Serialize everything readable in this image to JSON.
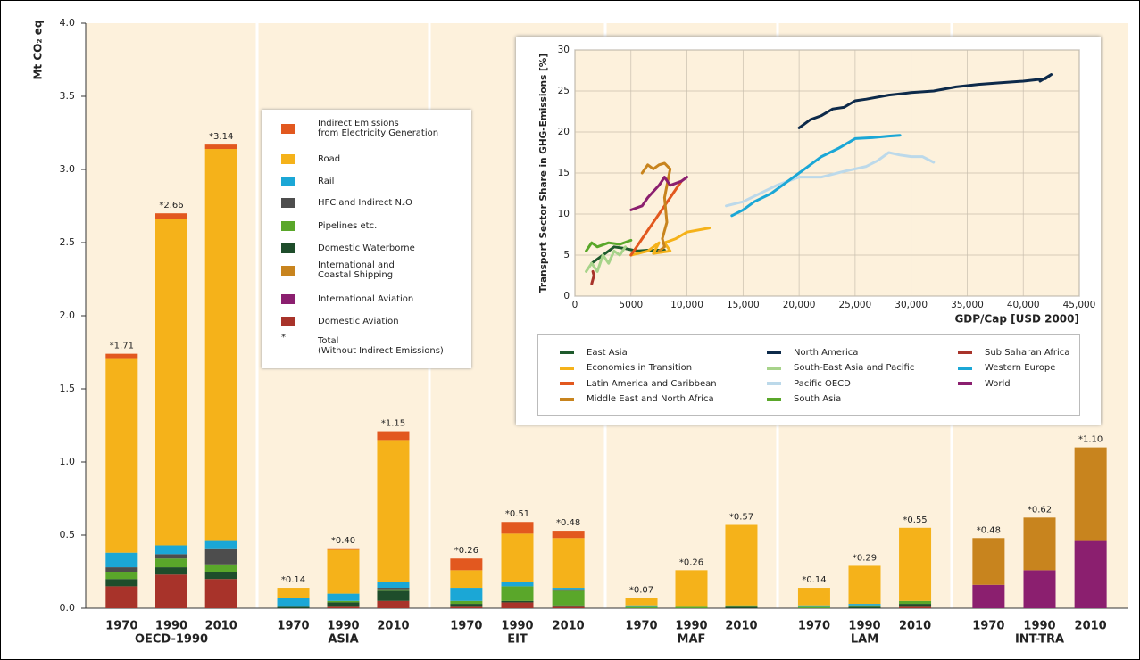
{
  "chart_data": [
    {
      "type": "stacked_bar",
      "ylabel": "Mt CO₂ eq",
      "ylim": [
        0,
        4
      ],
      "yticks": [
        {
          "value": 0,
          "label": "0.0"
        },
        0.5,
        {
          "value": 1,
          "label": "1.0"
        },
        1.5,
        {
          "value": 2,
          "label": "2.0"
        },
        2.5,
        {
          "value": 3,
          "label": "3.0"
        },
        3.5,
        {
          "value": 4,
          "label": "4.0"
        }
      ],
      "groups": [
        "OECD-1990",
        "ASIA",
        "EIT",
        "MAF",
        "LAM",
        "INT-TRA"
      ],
      "years": [
        "1970",
        "1990",
        "2010"
      ],
      "series": [
        {
          "name": "Indirect Emissions\nfrom Electricity Generation",
          "color": "#e2581f",
          "values": [
            0.03,
            0.04,
            0.03,
            0,
            0.01,
            0.06,
            0.08,
            0.08,
            0.05,
            0,
            0,
            0,
            0,
            0,
            0,
            0,
            0,
            0
          ]
        },
        {
          "name": "Road",
          "color": "#f5b21a",
          "values": [
            1.33,
            2.23,
            2.68,
            0.07,
            0.3,
            0.97,
            0.12,
            0.33,
            0.34,
            0.05,
            0.25,
            0.55,
            0.12,
            0.26,
            0.5,
            0,
            0,
            0
          ]
        },
        {
          "name": "Rail",
          "color": "#1ba7d6",
          "values": [
            0.1,
            0.06,
            0.05,
            0.06,
            0.05,
            0.04,
            0.09,
            0.03,
            0.01,
            0.01,
            0,
            0,
            0.01,
            0.01,
            0,
            0,
            0,
            0
          ]
        },
        {
          "name": "HFC and Indirect N₂O",
          "color": "#4d4d4d",
          "values": [
            0.03,
            0.03,
            0.11,
            0,
            0,
            0.01,
            0,
            0,
            0.01,
            0,
            0,
            0,
            0,
            0,
            0,
            0,
            0,
            0
          ]
        },
        {
          "name": "Pipelines etc.",
          "color": "#5aa72a",
          "values": [
            0.05,
            0.06,
            0.05,
            0,
            0.01,
            0.01,
            0.02,
            0.1,
            0.1,
            0.01,
            0.01,
            0.01,
            0.01,
            0.01,
            0.02,
            0,
            0,
            0
          ]
        },
        {
          "name": "Domestic Waterborne",
          "color": "#1e4d2b",
          "values": [
            0.05,
            0.05,
            0.05,
            0.01,
            0.03,
            0.07,
            0.02,
            0.01,
            0.01,
            0,
            0,
            0.01,
            0,
            0.01,
            0.02,
            0,
            0,
            0
          ]
        },
        {
          "name": "International and\nCoastal Shipping",
          "color": "#c8841e",
          "values": [
            0,
            0,
            0,
            0,
            0,
            0,
            0,
            0,
            0,
            0,
            0,
            0,
            0,
            0,
            0,
            0.32,
            0.36,
            0.64
          ]
        },
        {
          "name": "International Aviation",
          "color": "#8b1f6f",
          "values": [
            0,
            0,
            0,
            0,
            0,
            0,
            0,
            0,
            0,
            0,
            0,
            0,
            0,
            0,
            0,
            0.16,
            0.26,
            0.46
          ]
        },
        {
          "name": "Domestic Aviation",
          "color": "#a8332a",
          "values": [
            0.15,
            0.23,
            0.2,
            0,
            0.01,
            0.05,
            0.01,
            0.04,
            0.01,
            0,
            0,
            0,
            0,
            0,
            0.01,
            0,
            0,
            0
          ]
        }
      ],
      "totals": [
        1.71,
        2.66,
        3.14,
        0.14,
        0.4,
        1.15,
        0.26,
        0.51,
        0.48,
        0.07,
        0.26,
        0.57,
        0.14,
        0.29,
        0.55,
        0.48,
        0.62,
        1.1
      ],
      "total_labels": [
        "*1.71",
        "*2.66",
        "*3.14",
        "*0.14",
        "*0.40",
        "*1.15",
        "*0.26",
        "*0.51",
        "*0.48",
        "*0.07",
        "*0.26",
        "*0.57",
        "*0.14",
        "*0.29",
        "*0.55",
        "*0.48",
        "*0.62",
        "*1.10"
      ],
      "legend_note": {
        "symbol": "*",
        "text": "Total\n(Without Indirect Emissions)"
      }
    },
    {
      "type": "line",
      "xlabel": "GDP/Cap [USD 2000]",
      "ylabel": "Transport Sector Share in GHG-Emissions [%]",
      "xlim": [
        0,
        45000
      ],
      "xticks": [
        0,
        5000,
        {
          "value": 10000,
          "label": "10,000"
        },
        {
          "value": 15000,
          "label": "15,000"
        },
        {
          "value": 20000,
          "label": "20,000"
        },
        {
          "value": 25000,
          "label": "25,000"
        },
        {
          "value": 30000,
          "label": "30,000"
        },
        {
          "value": 35000,
          "label": "35,000"
        },
        {
          "value": 40000,
          "label": "40,000"
        },
        {
          "value": 45000,
          "label": "45,000"
        }
      ],
      "ylim": [
        0,
        30
      ],
      "yticks": [
        0,
        5,
        10,
        15,
        20,
        25,
        30
      ],
      "grid": true,
      "series": [
        {
          "name": "East Asia",
          "color": "#1e5a2c",
          "x": [
            1500,
            2000,
            2500,
            3000,
            3500,
            4500,
            5500,
            6500,
            8000
          ],
          "values": [
            4,
            4.5,
            5,
            5.5,
            6,
            5.8,
            5.5,
            5.6,
            5.6
          ]
        },
        {
          "name": "Economies in Transition",
          "color": "#f5b21a",
          "x": [
            5000,
            6500,
            7500,
            7000,
            8500,
            8000,
            9000,
            10000,
            12000
          ],
          "values": [
            5,
            5.5,
            6.5,
            5.2,
            5.5,
            6.5,
            7,
            7.8,
            8.3
          ]
        },
        {
          "name": "Latin America and Caribbean",
          "color": "#e2581f",
          "x": [
            5000,
            5500,
            6000,
            6500,
            7000,
            7500,
            8000,
            8500,
            9000,
            9500
          ],
          "values": [
            5,
            6,
            7,
            8,
            9,
            10,
            11,
            12,
            13,
            14
          ]
        },
        {
          "name": "Middle East and North Africa",
          "color": "#c8841e",
          "x": [
            6000,
            6500,
            7000,
            7500,
            8000,
            8500,
            8000,
            8200,
            7800,
            8000,
            7500
          ],
          "values": [
            15,
            16,
            15.5,
            16,
            16.2,
            15.5,
            12,
            9,
            7,
            6,
            5.5
          ]
        },
        {
          "name": "North America",
          "color": "#0d2a4a",
          "x": [
            20000,
            21000,
            22000,
            23000,
            24000,
            25000,
            26000,
            28000,
            30000,
            32000,
            34000,
            36000,
            38000,
            40000,
            42000,
            42500,
            41500
          ],
          "values": [
            20.5,
            21.5,
            22,
            22.8,
            23,
            23.8,
            24,
            24.5,
            24.8,
            25,
            25.5,
            25.8,
            26,
            26.2,
            26.5,
            27,
            26.2
          ]
        },
        {
          "name": "South-East Asia and Pacific",
          "color": "#a7d38a",
          "x": [
            1000,
            1500,
            2000,
            2500,
            3000,
            3500,
            4000,
            4500
          ],
          "values": [
            3,
            4,
            3,
            5,
            4,
            5.5,
            5,
            6
          ]
        },
        {
          "name": "Pacific OECD",
          "color": "#bcd9ea",
          "x": [
            13500,
            15000,
            16500,
            18000,
            20000,
            22000,
            24000,
            26000,
            27000,
            28000,
            29000,
            30000,
            31000,
            32000
          ],
          "values": [
            11,
            11.5,
            12.5,
            13.5,
            14.5,
            14.5,
            15.2,
            15.8,
            16.5,
            17.5,
            17.2,
            17,
            17,
            16.3
          ]
        },
        {
          "name": "South Asia",
          "color": "#5aa72a",
          "x": [
            1000,
            1500,
            2000,
            3000,
            4000,
            5000
          ],
          "values": [
            5.5,
            6.5,
            6,
            6.5,
            6.3,
            6.8
          ]
        },
        {
          "name": "Sub Saharan Africa",
          "color": "#a8332a",
          "x": [
            1500,
            1700,
            1600
          ],
          "values": [
            1.5,
            2.5,
            3
          ]
        },
        {
          "name": "Western Europe",
          "color": "#1ba7d6",
          "x": [
            14000,
            15000,
            16000,
            17500,
            19000,
            20500,
            22000,
            23500,
            25000,
            26500,
            28000,
            29000
          ],
          "values": [
            9.8,
            10.5,
            11.5,
            12.5,
            14,
            15.5,
            17,
            18,
            19.2,
            19.3,
            19.5,
            19.6
          ]
        },
        {
          "name": "World",
          "color": "#8b1f6f",
          "x": [
            5000,
            6000,
            6500,
            7500,
            8000,
            8500,
            9500,
            10000
          ],
          "values": [
            10.5,
            11,
            12,
            13.5,
            14.5,
            13.5,
            14,
            14.5
          ]
        }
      ]
    }
  ]
}
